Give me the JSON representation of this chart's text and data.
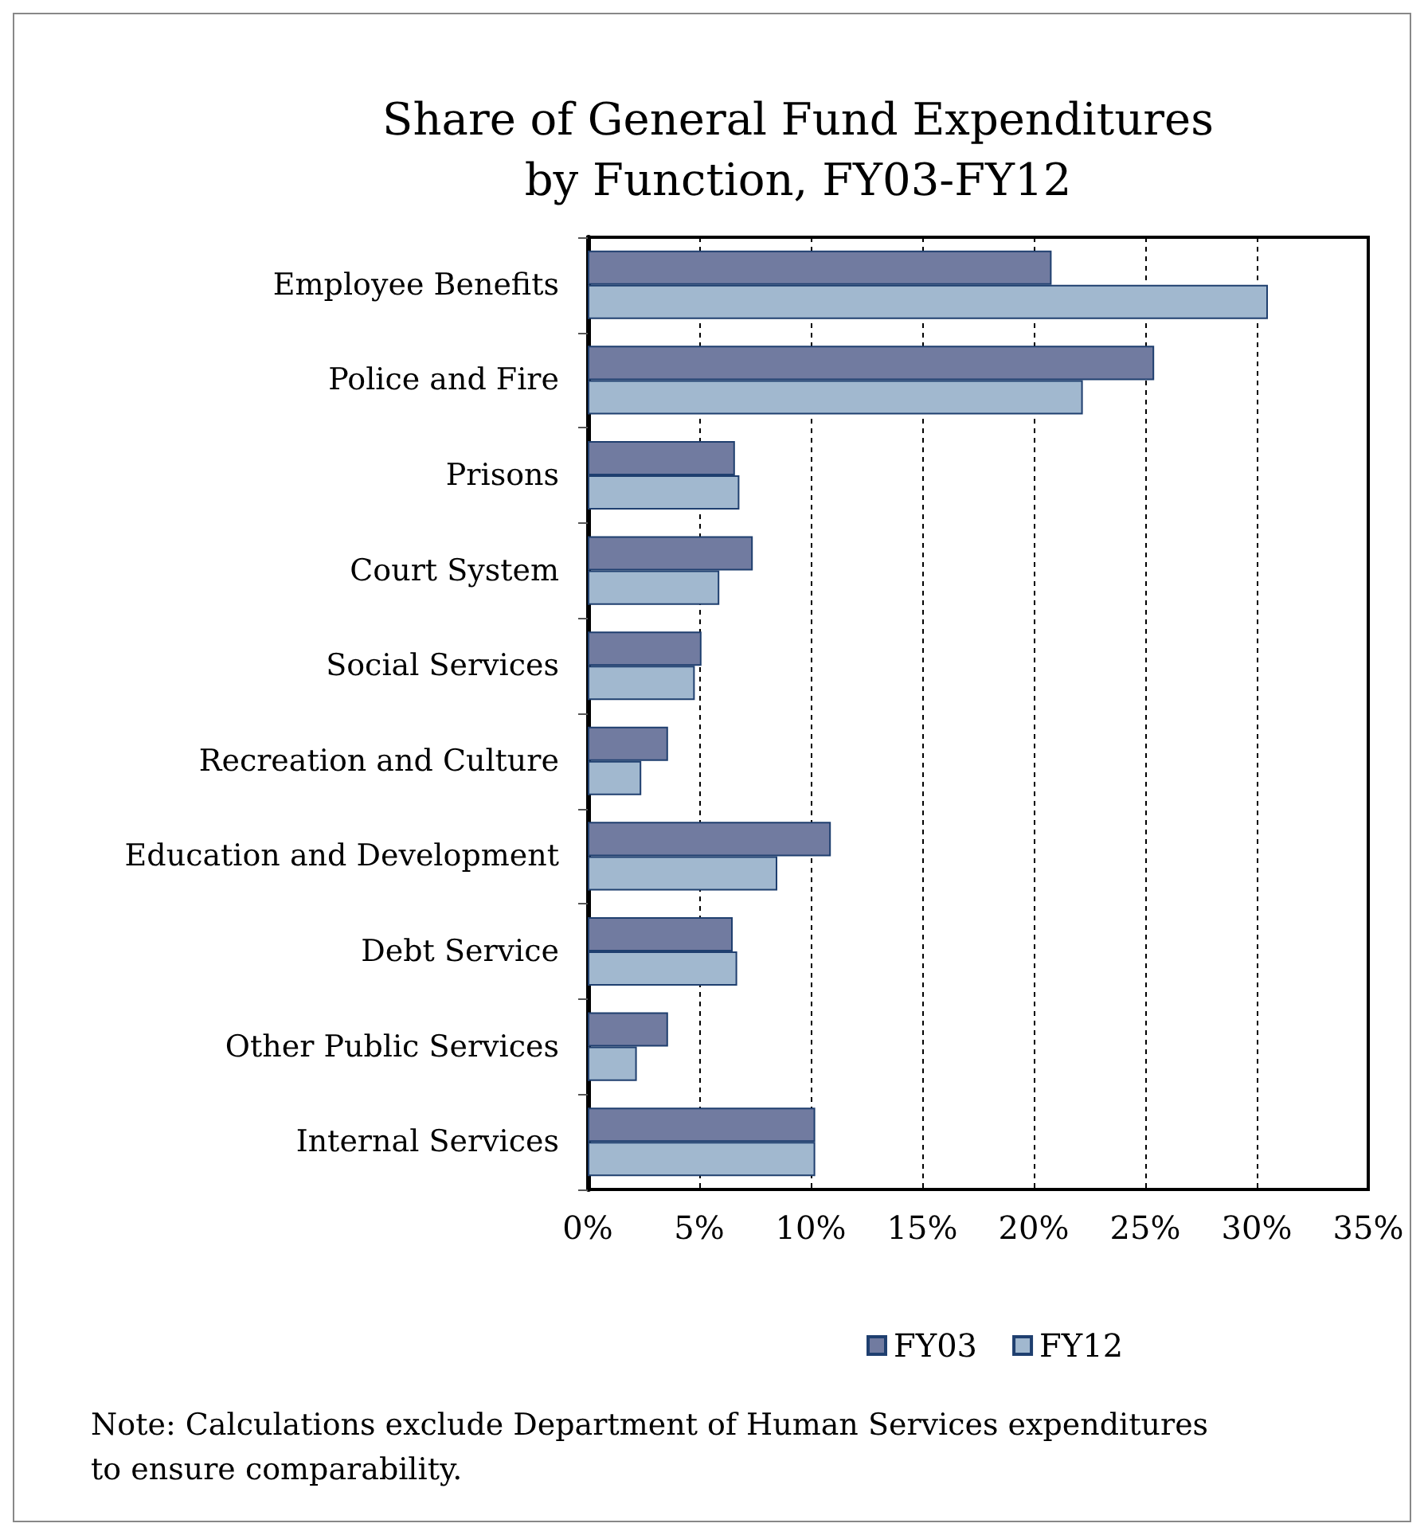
{
  "chart_data": {
    "type": "bar",
    "orientation": "horizontal",
    "title": "Share of General Fund Expenditures\nby Function, FY03-FY12",
    "categories": [
      "Employee Benefits",
      "Police and Fire",
      "Prisons",
      "Court System",
      "Social Services",
      "Recreation and Culture",
      "Education and Development",
      "Debt Service",
      "Other Public Services",
      "Internal Services"
    ],
    "series": [
      {
        "name": "FY03",
        "color": "#717ba0",
        "values": [
          20.8,
          25.4,
          6.6,
          7.4,
          5.1,
          3.6,
          10.9,
          6.5,
          3.6,
          10.2
        ]
      },
      {
        "name": "FY12",
        "color": "#a1b8cf",
        "values": [
          30.5,
          22.2,
          6.8,
          5.9,
          4.8,
          2.4,
          8.5,
          6.7,
          2.2,
          10.2
        ]
      }
    ],
    "xlim": [
      0,
      35
    ],
    "xticks": [
      {
        "value": 0,
        "label": "0%"
      },
      {
        "value": 5,
        "label": "5%"
      },
      {
        "value": 10,
        "label": "10%"
      },
      {
        "value": 15,
        "label": "15%"
      },
      {
        "value": 20,
        "label": "20%"
      },
      {
        "value": 25,
        "label": "25%"
      },
      {
        "value": 30,
        "label": "30%"
      },
      {
        "value": 35,
        "label": "35%"
      }
    ],
    "grid": "x",
    "legend": "bottom",
    "annotations": [
      "Note: Calculations exclude Department of Human Services expenditures to ensure comparability."
    ]
  }
}
